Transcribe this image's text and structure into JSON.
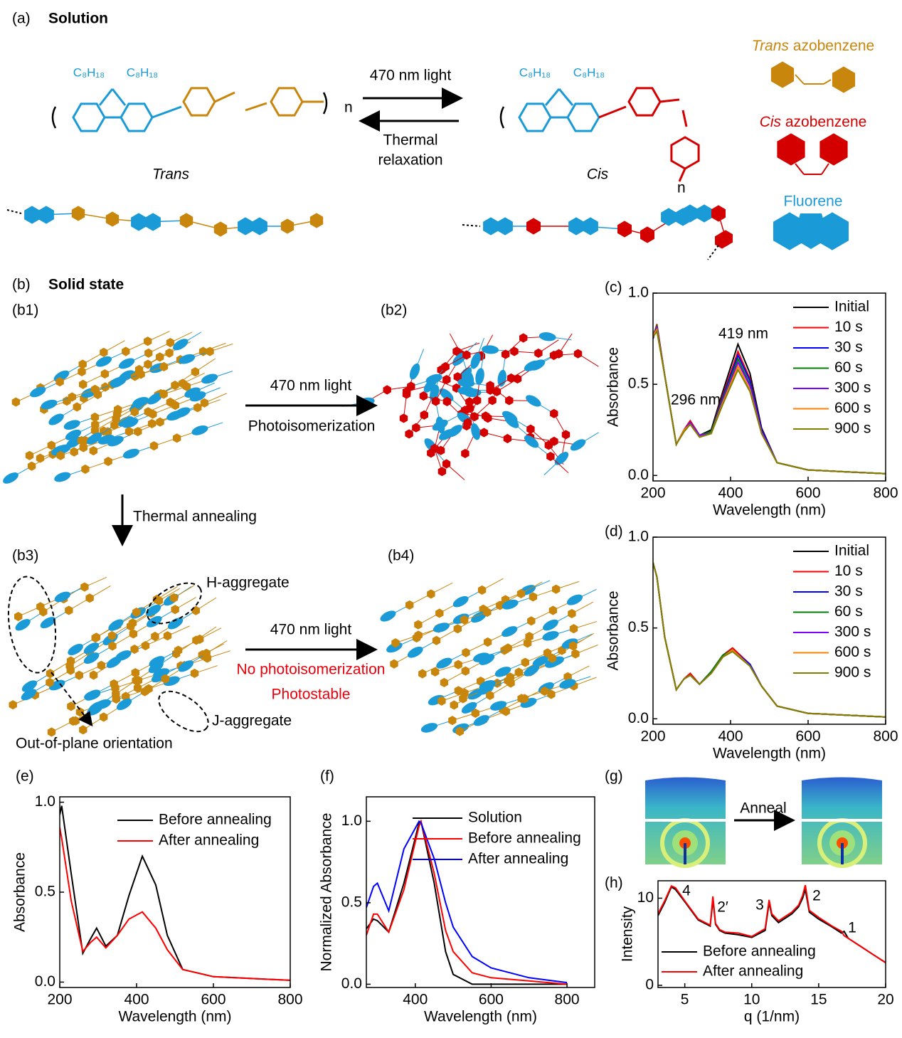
{
  "panel_a": {
    "label": "(a)",
    "title": "Solution",
    "forward": "470 nm light",
    "backward_1": "Thermal",
    "backward_2": "relaxation",
    "trans": "Trans",
    "cis": "Cis",
    "substituent": "C₈H₁₈",
    "repeat": "n",
    "legend_trans_1": "Trans",
    "legend_trans_2": "azobenzene",
    "legend_cis_1": "Cis",
    "legend_cis_2": "azobenzene",
    "legend_fluorene": "Fluorene"
  },
  "panel_b": {
    "label": "(b)",
    "title": "Solid state",
    "b1": "(b1)",
    "b2": "(b2)",
    "b3": "(b3)",
    "b4": "(b4)",
    "light_1": "470 nm light",
    "photoisomerization": "Photoisomerization",
    "annealing": "Thermal annealing",
    "light_2": "470 nm light",
    "no_photoisomerization": "No photoisomerization",
    "photostable": "Photostable",
    "h_aggregate": "H-aggregate",
    "j_aggregate": "J-aggregate",
    "orientation": "Out-of-plane orientation"
  },
  "panel_g": {
    "label": "(g)",
    "arrow": "Anneal"
  },
  "chart_data": [
    {
      "type": "line",
      "panel_label": "(c)",
      "xlabel": "Wavelength (nm)",
      "ylabel": "Absorbance",
      "annotations": [
        "419 nm",
        "296 nm"
      ],
      "x": [
        200,
        210,
        230,
        260,
        280,
        296,
        320,
        350,
        380,
        419,
        450,
        480,
        520,
        600,
        700,
        800
      ],
      "series": [
        {
          "name": "Initial",
          "color": "#000000",
          "values": [
            0.75,
            0.82,
            0.55,
            0.17,
            0.25,
            0.3,
            0.22,
            0.25,
            0.46,
            0.72,
            0.56,
            0.26,
            0.07,
            0.03,
            0.02,
            0.01
          ]
        },
        {
          "name": "10 s",
          "color": "#ff0000",
          "values": [
            0.76,
            0.83,
            0.55,
            0.17,
            0.25,
            0.3,
            0.22,
            0.24,
            0.44,
            0.68,
            0.53,
            0.25,
            0.07,
            0.03,
            0.02,
            0.01
          ]
        },
        {
          "name": "30 s",
          "color": "#0000ff",
          "values": [
            0.76,
            0.82,
            0.55,
            0.17,
            0.25,
            0.29,
            0.22,
            0.24,
            0.43,
            0.66,
            0.52,
            0.25,
            0.07,
            0.03,
            0.02,
            0.01
          ]
        },
        {
          "name": "60 s",
          "color": "#008000",
          "values": [
            0.77,
            0.82,
            0.55,
            0.17,
            0.25,
            0.29,
            0.22,
            0.24,
            0.42,
            0.64,
            0.5,
            0.24,
            0.07,
            0.03,
            0.02,
            0.01
          ]
        },
        {
          "name": "300 s",
          "color": "#8000ff",
          "values": [
            0.77,
            0.81,
            0.55,
            0.17,
            0.25,
            0.29,
            0.22,
            0.23,
            0.41,
            0.62,
            0.49,
            0.24,
            0.07,
            0.03,
            0.02,
            0.01
          ]
        },
        {
          "name": "600 s",
          "color": "#ff8000",
          "values": [
            0.77,
            0.8,
            0.55,
            0.17,
            0.25,
            0.28,
            0.21,
            0.23,
            0.4,
            0.6,
            0.47,
            0.23,
            0.07,
            0.03,
            0.02,
            0.01
          ]
        },
        {
          "name": "900 s",
          "color": "#808000",
          "values": [
            0.76,
            0.79,
            0.55,
            0.17,
            0.24,
            0.28,
            0.21,
            0.23,
            0.39,
            0.58,
            0.46,
            0.23,
            0.07,
            0.03,
            0.02,
            0.01
          ]
        }
      ],
      "xlim": [
        200,
        800
      ],
      "ylim": [
        -0.03,
        1.0
      ],
      "xticks": [
        200,
        400,
        600,
        800
      ],
      "yticks": [
        {
          "value": 0,
          "label": "0.0"
        },
        {
          "value": 0.5,
          "label": "0.5"
        },
        {
          "value": 1,
          "label": "1.0"
        }
      ]
    },
    {
      "type": "line",
      "panel_label": "(d)",
      "xlabel": "Wavelength (nm)",
      "ylabel": "Absorbance",
      "x": [
        200,
        210,
        230,
        260,
        280,
        296,
        320,
        350,
        380,
        405,
        450,
        480,
        520,
        600,
        700,
        800
      ],
      "series": [
        {
          "name": "Initial",
          "color": "#000000",
          "values": [
            0.86,
            0.78,
            0.45,
            0.16,
            0.22,
            0.25,
            0.19,
            0.26,
            0.35,
            0.39,
            0.3,
            0.18,
            0.07,
            0.03,
            0.02,
            0.01
          ]
        },
        {
          "name": "10 s",
          "color": "#ff0000",
          "values": [
            0.86,
            0.78,
            0.45,
            0.16,
            0.22,
            0.25,
            0.19,
            0.26,
            0.35,
            0.39,
            0.3,
            0.18,
            0.07,
            0.03,
            0.02,
            0.01
          ]
        },
        {
          "name": "30 s",
          "color": "#0000ff",
          "values": [
            0.86,
            0.78,
            0.45,
            0.16,
            0.22,
            0.24,
            0.19,
            0.26,
            0.35,
            0.38,
            0.3,
            0.18,
            0.07,
            0.03,
            0.02,
            0.01
          ]
        },
        {
          "name": "60 s",
          "color": "#008000",
          "values": [
            0.86,
            0.78,
            0.45,
            0.16,
            0.22,
            0.24,
            0.19,
            0.26,
            0.35,
            0.38,
            0.29,
            0.18,
            0.07,
            0.03,
            0.02,
            0.01
          ]
        },
        {
          "name": "300 s",
          "color": "#8000ff",
          "values": [
            0.86,
            0.78,
            0.45,
            0.16,
            0.22,
            0.24,
            0.19,
            0.25,
            0.34,
            0.38,
            0.29,
            0.18,
            0.07,
            0.03,
            0.02,
            0.01
          ]
        },
        {
          "name": "600 s",
          "color": "#ff8000",
          "values": [
            0.86,
            0.78,
            0.45,
            0.16,
            0.22,
            0.24,
            0.19,
            0.25,
            0.34,
            0.38,
            0.29,
            0.18,
            0.07,
            0.03,
            0.02,
            0.01
          ]
        },
        {
          "name": "900 s",
          "color": "#808000",
          "values": [
            0.86,
            0.78,
            0.45,
            0.16,
            0.22,
            0.24,
            0.19,
            0.25,
            0.34,
            0.37,
            0.29,
            0.18,
            0.07,
            0.03,
            0.02,
            0.01
          ]
        }
      ],
      "xlim": [
        200,
        800
      ],
      "ylim": [
        -0.03,
        1.0
      ],
      "xticks": [
        200,
        400,
        600,
        800
      ],
      "yticks": [
        {
          "value": 0,
          "label": "0.0"
        },
        {
          "value": 0.5,
          "label": "0.5"
        },
        {
          "value": 1,
          "label": "1.0"
        }
      ]
    },
    {
      "type": "line",
      "panel_label": "(e)",
      "xlabel": "Wavelength (nm)",
      "ylabel": "Absorbance",
      "x": [
        200,
        205,
        230,
        260,
        280,
        296,
        320,
        350,
        380,
        415,
        450,
        480,
        520,
        600,
        700,
        800
      ],
      "series": [
        {
          "name": "Before annealing",
          "color": "#000000",
          "values": [
            0.93,
            0.98,
            0.6,
            0.16,
            0.24,
            0.3,
            0.2,
            0.26,
            0.48,
            0.7,
            0.54,
            0.26,
            0.07,
            0.03,
            0.02,
            0.01
          ]
        },
        {
          "name": "After annealing",
          "color": "#ff0000",
          "values": [
            0.86,
            0.8,
            0.45,
            0.17,
            0.22,
            0.25,
            0.19,
            0.26,
            0.35,
            0.39,
            0.3,
            0.18,
            0.07,
            0.03,
            0.02,
            0.01
          ]
        }
      ],
      "xlim": [
        200,
        800
      ],
      "ylim": [
        -0.03,
        1.03
      ],
      "xticks": [
        200,
        400,
        600,
        800
      ],
      "yticks": [
        {
          "value": 0,
          "label": "0.0"
        },
        {
          "value": 0.5,
          "label": "0.5"
        },
        {
          "value": 1,
          "label": "1.0"
        }
      ]
    },
    {
      "type": "line",
      "panel_label": "(f)",
      "xlabel": "Wavelength (nm)",
      "ylabel": "Normalized Absorbance",
      "x": [
        271,
        290,
        300,
        330,
        370,
        410,
        415,
        450,
        480,
        500,
        550,
        600,
        700,
        800
      ],
      "series": [
        {
          "name": "Solution",
          "color": "#000000",
          "values": [
            0.34,
            0.4,
            0.39,
            0.32,
            0.62,
            0.99,
            1.0,
            0.62,
            0.2,
            0.06,
            0.0,
            0.0,
            0.0,
            0.0
          ]
        },
        {
          "name": "Before annealing",
          "color": "#ff0000",
          "values": [
            0.3,
            0.43,
            0.43,
            0.32,
            0.58,
            0.97,
            1.0,
            0.68,
            0.33,
            0.2,
            0.07,
            0.04,
            0.02,
            0.0
          ]
        },
        {
          "name": "After annealing",
          "color": "#0000ff",
          "values": [
            0.47,
            0.6,
            0.62,
            0.45,
            0.83,
            1.0,
            0.99,
            0.77,
            0.5,
            0.35,
            0.17,
            0.1,
            0.04,
            0.01
          ]
        }
      ],
      "xlim": [
        271,
        873
      ],
      "ylim": [
        -0.02,
        1.15
      ],
      "xticks": [
        400,
        600,
        800
      ],
      "yticks": [
        {
          "value": 0,
          "label": "0.0"
        },
        {
          "value": 0.5,
          "label": "0.5"
        },
        {
          "value": 1,
          "label": "1.0"
        }
      ]
    },
    {
      "type": "line",
      "panel_label": "(h)",
      "xlabel": "q (1/nm)",
      "ylabel": "Intensity",
      "annotations": [
        "4",
        "2′",
        "3",
        "2",
        "1"
      ],
      "x": [
        3,
        3.5,
        4,
        4.3,
        5,
        6,
        6.9,
        7.1,
        7.3,
        7.6,
        8,
        9,
        10,
        11,
        11.3,
        11.5,
        12,
        13,
        13.5,
        13.8,
        14,
        14.3,
        15,
        16,
        16.7,
        16.9,
        17.2,
        18,
        19,
        20
      ],
      "series": [
        {
          "name": "Before annealing",
          "color": "#000000",
          "values": [
            8,
            9.5,
            11.3,
            11,
            9.6,
            7.5,
            6.8,
            9.8,
            7,
            6.3,
            6,
            5.8,
            5.5,
            6.3,
            9.5,
            8,
            7.2,
            8.2,
            9,
            10,
            11,
            8.4,
            7.6,
            6.7,
            6,
            6.2,
            5.4,
            4.6,
            3.6,
            2.6
          ]
        },
        {
          "name": "After annealing",
          "color": "#ff0000",
          "values": [
            8.2,
            9.7,
            11.4,
            11.2,
            9.7,
            7.6,
            6.9,
            10.2,
            7.1,
            6.4,
            6.1,
            6,
            5.6,
            6.5,
            9.8,
            8.2,
            7.4,
            8.4,
            9.2,
            10.3,
            11.5,
            8.6,
            7.8,
            6.8,
            6.2,
            5.7,
            5.4,
            4.6,
            3.6,
            2.6
          ]
        }
      ],
      "xlim": [
        3,
        20
      ],
      "ylim": [
        -0.25,
        12
      ],
      "xticks": [
        5,
        10,
        15,
        20
      ],
      "yticks": [
        0,
        10
      ]
    }
  ]
}
